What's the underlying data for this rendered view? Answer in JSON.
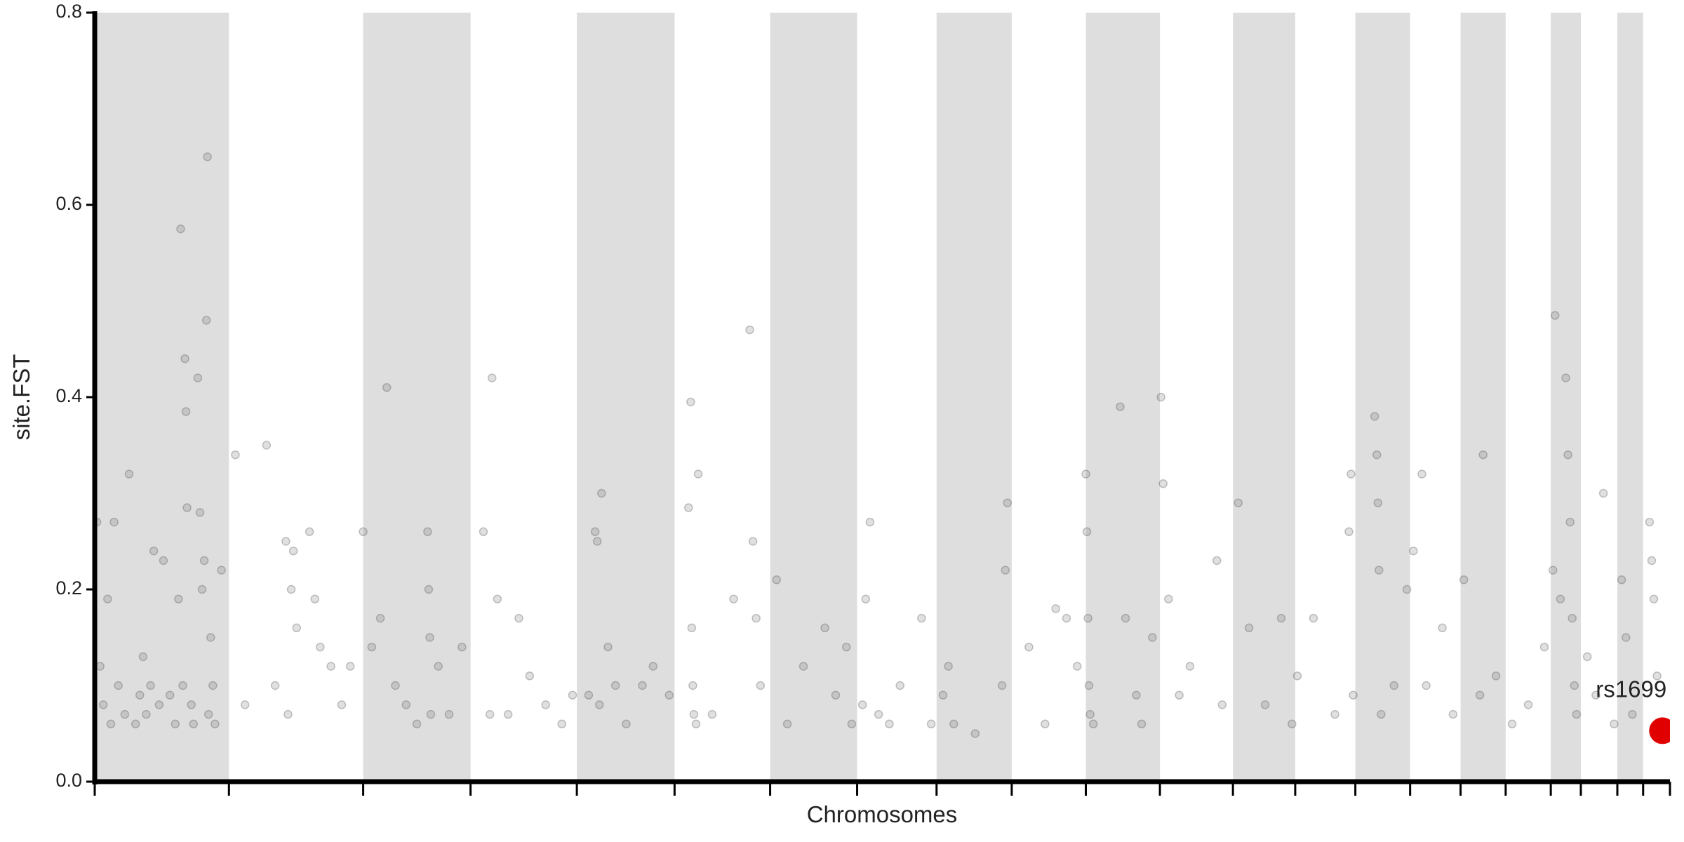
{
  "chart_data": {
    "type": "scatter",
    "xlabel": "Chromosomes",
    "ylabel": "site.FST",
    "xlim": [
      0,
      1467
    ],
    "ylim": [
      0,
      0.8
    ],
    "yticks": [
      {
        "value": 0,
        "label": "0.0"
      },
      0.2,
      0.4,
      0.6,
      0.8
    ],
    "xticks": [
      0,
      125,
      250,
      350,
      449,
      540,
      629,
      710,
      784,
      854,
      923,
      992,
      1060,
      1118,
      1174,
      1225,
      1272,
      1314,
      1356,
      1384,
      1418,
      1442,
      1467
    ],
    "band_color": "#dedede",
    "color": "#555555",
    "x": [
      2,
      5,
      8,
      12,
      15,
      18,
      22,
      28,
      32,
      38,
      42,
      45,
      48,
      52,
      55,
      60,
      64,
      70,
      75,
      78,
      80,
      82,
      84,
      85,
      86,
      90,
      92,
      96,
      98,
      100,
      102,
      104,
      105,
      106,
      108,
      110,
      112,
      118,
      131,
      140,
      160,
      168,
      178,
      180,
      183,
      185,
      188,
      200,
      205,
      210,
      220,
      230,
      238,
      250,
      258,
      266,
      272,
      280,
      290,
      300,
      310,
      311,
      312,
      313,
      320,
      330,
      342,
      362,
      368,
      370,
      375,
      385,
      395,
      405,
      420,
      435,
      445,
      460,
      466,
      468,
      470,
      472,
      478,
      485,
      495,
      510,
      520,
      535,
      553,
      555,
      556,
      557,
      558,
      560,
      562,
      575,
      595,
      610,
      613,
      616,
      620,
      635,
      645,
      660,
      680,
      690,
      700,
      705,
      715,
      718,
      722,
      730,
      740,
      750,
      770,
      779,
      790,
      795,
      800,
      820,
      845,
      850,
      848,
      870,
      885,
      895,
      905,
      915,
      923,
      924,
      925,
      926,
      927,
      930,
      955,
      960,
      970,
      975,
      985,
      993,
      995,
      1000,
      1010,
      1020,
      1045,
      1050,
      1065,
      1075,
      1090,
      1105,
      1115,
      1120,
      1135,
      1155,
      1168,
      1170,
      1172,
      1192,
      1194,
      1195,
      1196,
      1198,
      1210,
      1222,
      1228,
      1236,
      1240,
      1255,
      1265,
      1275,
      1290,
      1293,
      1305,
      1320,
      1335,
      1350,
      1358,
      1360,
      1365,
      1370,
      1372,
      1374,
      1376,
      1378,
      1380,
      1390,
      1398,
      1405,
      1415,
      1422,
      1426,
      1432,
      1448,
      1450,
      1452,
      1455
    ],
    "values": [
      0.27,
      0.12,
      0.08,
      0.19,
      0.06,
      0.27,
      0.1,
      0.07,
      0.32,
      0.06,
      0.09,
      0.13,
      0.07,
      0.1,
      0.24,
      0.08,
      0.23,
      0.09,
      0.06,
      0.19,
      0.575,
      0.1,
      0.44,
      0.385,
      0.285,
      0.08,
      0.06,
      0.42,
      0.28,
      0.2,
      0.23,
      0.48,
      0.65,
      0.07,
      0.15,
      0.1,
      0.06,
      0.22,
      0.34,
      0.08,
      0.35,
      0.1,
      0.25,
      0.07,
      0.2,
      0.24,
      0.16,
      0.26,
      0.19,
      0.14,
      0.12,
      0.08,
      0.12,
      0.26,
      0.14,
      0.17,
      0.41,
      0.1,
      0.08,
      0.06,
      0.26,
      0.2,
      0.15,
      0.07,
      0.12,
      0.07,
      0.14,
      0.26,
      0.07,
      0.42,
      0.19,
      0.07,
      0.17,
      0.11,
      0.08,
      0.06,
      0.09,
      0.09,
      0.26,
      0.25,
      0.08,
      0.3,
      0.14,
      0.1,
      0.06,
      0.1,
      0.12,
      0.09,
      0.285,
      0.395,
      0.16,
      0.1,
      0.07,
      0.06,
      0.32,
      0.07,
      0.19,
      0.47,
      0.25,
      0.17,
      0.1,
      0.21,
      0.06,
      0.12,
      0.16,
      0.09,
      0.14,
      0.06,
      0.08,
      0.19,
      0.27,
      0.07,
      0.06,
      0.1,
      0.17,
      0.06,
      0.09,
      0.12,
      0.06,
      0.05,
      0.1,
      0.29,
      0.22,
      0.14,
      0.06,
      0.18,
      0.17,
      0.12,
      0.32,
      0.26,
      0.17,
      0.1,
      0.07,
      0.06,
      0.39,
      0.17,
      0.09,
      0.06,
      0.15,
      0.4,
      0.31,
      0.19,
      0.09,
      0.12,
      0.23,
      0.08,
      0.29,
      0.16,
      0.08,
      0.17,
      0.06,
      0.11,
      0.17,
      0.07,
      0.26,
      0.32,
      0.09,
      0.38,
      0.34,
      0.29,
      0.22,
      0.07,
      0.1,
      0.2,
      0.24,
      0.32,
      0.1,
      0.16,
      0.07,
      0.21,
      0.09,
      0.34,
      0.11,
      0.06,
      0.08,
      0.14,
      0.22,
      0.485,
      0.19,
      0.42,
      0.34,
      0.27,
      0.17,
      0.1,
      0.07,
      0.13,
      0.09,
      0.3,
      0.06,
      0.21,
      0.15,
      0.07,
      0.27,
      0.23,
      0.19,
      0.11
    ],
    "highlight": {
      "label": "rs1699",
      "x": 1460,
      "value": 0.053,
      "color": "#e00000"
    }
  }
}
